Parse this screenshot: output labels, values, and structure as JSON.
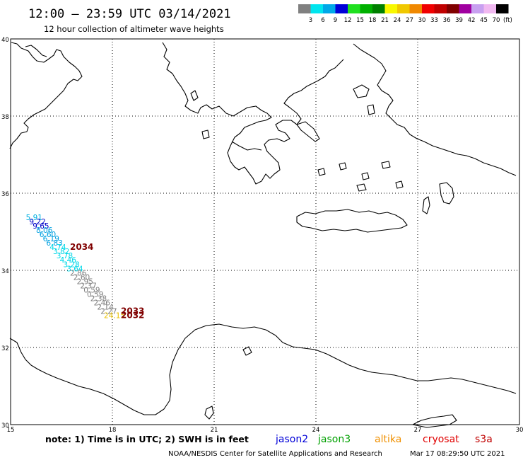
{
  "header": {
    "title": "12:00 – 23:59 UTC 03/14/2021",
    "subtitle": "12 hour collection of altimeter wave heights"
  },
  "color_scale": {
    "unit": "(ft)",
    "bins": [
      {
        "label": "3",
        "color": "#808080"
      },
      {
        "label": "6",
        "color": "#00e5ee"
      },
      {
        "label": "9",
        "color": "#00a8e8"
      },
      {
        "label": "12",
        "color": "#0000d8"
      },
      {
        "label": "15",
        "color": "#20e020"
      },
      {
        "label": "18",
        "color": "#00b000"
      },
      {
        "label": "21",
        "color": "#008000"
      },
      {
        "label": "24",
        "color": "#f8f800"
      },
      {
        "label": "27",
        "color": "#f0c800"
      },
      {
        "label": "30",
        "color": "#f08800"
      },
      {
        "label": "33",
        "color": "#f00000"
      },
      {
        "label": "36",
        "color": "#c00000"
      },
      {
        "label": "39",
        "color": "#800000"
      },
      {
        "label": "42",
        "color": "#a000a0"
      },
      {
        "label": "45",
        "color": "#c8a0f0"
      },
      {
        "label": "70",
        "color": "#f0b8f0"
      },
      {
        "label": "",
        "color": "#000000"
      }
    ]
  },
  "map": {
    "lon_range": [
      15,
      30
    ],
    "lat_range": [
      30,
      40
    ],
    "lon_ticks": [
      15,
      18,
      21,
      24,
      27,
      30
    ],
    "lat_ticks": [
      30,
      32,
      34,
      36,
      38,
      40
    ],
    "grid_lons": [
      18,
      21,
      24,
      27
    ],
    "grid_lats": [
      32,
      34,
      36,
      38
    ],
    "readings": [
      {
        "value": "5.91",
        "color": "#00b0e0",
        "lon": 15.45,
        "lat": 35.3
      },
      {
        "value": "9.22",
        "color": "#0000c8",
        "lon": 15.55,
        "lat": 35.19
      },
      {
        "value": "9.65",
        "color": "#0000c8",
        "lon": 15.65,
        "lat": 35.08
      },
      {
        "value": "8.06",
        "color": "#00a0e0",
        "lon": 15.75,
        "lat": 34.97
      },
      {
        "value": "6.60",
        "color": "#00a0e0",
        "lon": 15.85,
        "lat": 34.86
      },
      {
        "value": "6.19",
        "color": "#00a0e0",
        "lon": 15.95,
        "lat": 34.75
      },
      {
        "value": "6.83",
        "color": "#00a0e0",
        "lon": 16.05,
        "lat": 34.64
      },
      {
        "value": "4.74",
        "color": "#00d8e8",
        "lon": 16.15,
        "lat": 34.53
      },
      {
        "value": "3.82",
        "color": "#00d8e8",
        "lon": 16.25,
        "lat": 34.42
      },
      {
        "value": "3.78",
        "color": "#00d8e8",
        "lon": 16.35,
        "lat": 34.31
      },
      {
        "value": "4.46",
        "color": "#00d8e8",
        "lon": 16.45,
        "lat": 34.2
      },
      {
        "value": "3.28",
        "color": "#00d8e8",
        "lon": 16.55,
        "lat": 34.08
      },
      {
        "value": "3.64",
        "color": "#00d8e8",
        "lon": 16.65,
        "lat": 33.97
      },
      {
        "value": "2.86",
        "color": "#808080",
        "lon": 16.75,
        "lat": 33.86
      },
      {
        "value": "2.60",
        "color": "#808080",
        "lon": 16.85,
        "lat": 33.75
      },
      {
        "value": "2.95",
        "color": "#808080",
        "lon": 16.95,
        "lat": 33.64
      },
      {
        "value": "2.37",
        "color": "#808080",
        "lon": 17.05,
        "lat": 33.53
      },
      {
        "value": "0.59",
        "color": "#808080",
        "lon": 17.15,
        "lat": 33.42
      },
      {
        "value": "0.59",
        "color": "#808080",
        "lon": 17.25,
        "lat": 33.31
      },
      {
        "value": "2.38",
        "color": "#808080",
        "lon": 17.35,
        "lat": 33.2
      },
      {
        "value": "2.46",
        "color": "#808080",
        "lon": 17.45,
        "lat": 33.09
      },
      {
        "value": "2.14",
        "color": "#808080",
        "lon": 17.55,
        "lat": 32.98
      },
      {
        "value": "2.27",
        "color": "#808080",
        "lon": 17.65,
        "lat": 32.87
      },
      {
        "value": "24.15",
        "color": "#e8c000",
        "lon": 17.75,
        "lat": 32.76
      }
    ],
    "passes": [
      {
        "label": "2034",
        "lon": 16.75,
        "lat": 34.53
      },
      {
        "label": "2033",
        "lon": 18.25,
        "lat": 32.87
      },
      {
        "label": "2032",
        "lon": 18.25,
        "lat": 32.76
      }
    ]
  },
  "footer": {
    "note": "note:  1) Time is in UTC;  2) SWH is in feet",
    "credit_left": "NOAA/NESDIS Center for Satellite Applications and Research",
    "credit_right": "Mar 17 08:29:50 UTC 2021"
  },
  "legend": [
    {
      "label": "jason2",
      "color": "#0000d8"
    },
    {
      "label": "jason3",
      "color": "#00a000"
    },
    {
      "label": "altika",
      "color": "#f09000"
    },
    {
      "label": "cryosat",
      "color": "#e00000"
    },
    {
      "label": "s3a",
      "color": "#c00000"
    }
  ]
}
